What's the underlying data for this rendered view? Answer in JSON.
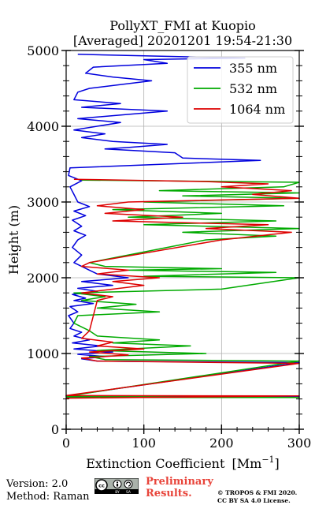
{
  "chart_data": {
    "type": "line",
    "title_line1": "PollyXT_FMI at Kuopio",
    "title_line2": "[Averaged] 20201201 19:54-21:30",
    "xlabel": "Extinction Coefficient",
    "xlabel_unit": "[Mm",
    "xlabel_sup": "−1",
    "xlabel_close": "]",
    "ylabel": "Height (m)",
    "xlim": [
      0,
      300
    ],
    "ylim": [
      0,
      5000
    ],
    "x_ticks": [
      0,
      100,
      200,
      300
    ],
    "y_ticks": [
      0,
      1000,
      2000,
      3000,
      4000,
      5000
    ],
    "x_tick_labels": [
      "0",
      "100",
      "200",
      "300"
    ],
    "y_tick_labels": [
      "0",
      "1000",
      "2000",
      "3000",
      "4000",
      "5000"
    ],
    "grid": true,
    "legend_position": "top-right",
    "series": [
      {
        "name": "355 nm",
        "color": "#0000dd",
        "points": [
          [
            0,
            420
          ],
          [
            300,
            430
          ],
          [
            0,
            440
          ],
          [
            300,
            880
          ],
          [
            40,
            900
          ],
          [
            20,
            930
          ],
          [
            50,
            960
          ],
          [
            15,
            990
          ],
          [
            60,
            1020
          ],
          [
            10,
            1060
          ],
          [
            45,
            1100
          ],
          [
            8,
            1140
          ],
          [
            30,
            1180
          ],
          [
            10,
            1230
          ],
          [
            20,
            1280
          ],
          [
            5,
            1330
          ],
          [
            10,
            1400
          ],
          [
            3,
            1500
          ],
          [
            15,
            1550
          ],
          [
            5,
            1620
          ],
          [
            35,
            1660
          ],
          [
            10,
            1700
          ],
          [
            25,
            1730
          ],
          [
            8,
            1780
          ],
          [
            40,
            1820
          ],
          [
            15,
            1860
          ],
          [
            60,
            1900
          ],
          [
            20,
            1950
          ],
          [
            80,
            2000
          ],
          [
            40,
            2050
          ],
          [
            30,
            2100
          ],
          [
            10,
            2200
          ],
          [
            20,
            2300
          ],
          [
            8,
            2400
          ],
          [
            15,
            2500
          ],
          [
            25,
            2560
          ],
          [
            10,
            2620
          ],
          [
            20,
            2680
          ],
          [
            8,
            2760
          ],
          [
            25,
            2820
          ],
          [
            10,
            2880
          ],
          [
            30,
            2940
          ],
          [
            15,
            3000
          ],
          [
            10,
            3100
          ],
          [
            5,
            3200
          ],
          [
            20,
            3280
          ],
          [
            3,
            3350
          ],
          [
            5,
            3450
          ],
          [
            250,
            3550
          ],
          [
            150,
            3580
          ],
          [
            140,
            3650
          ],
          [
            50,
            3700
          ],
          [
            80,
            3720
          ],
          [
            130,
            3760
          ],
          [
            60,
            3800
          ],
          [
            20,
            3850
          ],
          [
            50,
            3900
          ],
          [
            10,
            3950
          ],
          [
            70,
            4050
          ],
          [
            15,
            4100
          ],
          [
            130,
            4200
          ],
          [
            20,
            4250
          ],
          [
            70,
            4300
          ],
          [
            10,
            4350
          ],
          [
            15,
            4450
          ],
          [
            30,
            4500
          ],
          [
            110,
            4600
          ],
          [
            60,
            4650
          ],
          [
            25,
            4700
          ],
          [
            35,
            4780
          ],
          [
            130,
            4830
          ],
          [
            100,
            4880
          ],
          [
            230,
            4900
          ],
          [
            15,
            4950
          ]
        ]
      },
      {
        "name": "532 nm",
        "color": "#00aa00",
        "points": [
          [
            0,
            420
          ],
          [
            300,
            420
          ],
          [
            0,
            435
          ],
          [
            300,
            900
          ],
          [
            50,
            920
          ],
          [
            30,
            960
          ],
          [
            180,
            1000
          ],
          [
            40,
            1040
          ],
          [
            160,
            1100
          ],
          [
            60,
            1140
          ],
          [
            120,
            1180
          ],
          [
            40,
            1230
          ],
          [
            30,
            1300
          ],
          [
            10,
            1400
          ],
          [
            15,
            1500
          ],
          [
            120,
            1550
          ],
          [
            40,
            1600
          ],
          [
            90,
            1650
          ],
          [
            20,
            1700
          ],
          [
            50,
            1750
          ],
          [
            10,
            1800
          ],
          [
            200,
            1850
          ],
          [
            300,
            2000
          ],
          [
            100,
            2020
          ],
          [
            270,
            2070
          ],
          [
            80,
            2100
          ],
          [
            200,
            2120
          ],
          [
            50,
            2150
          ],
          [
            30,
            2200
          ],
          [
            180,
            2500
          ],
          [
            270,
            2550
          ],
          [
            150,
            2600
          ],
          [
            300,
            2650
          ],
          [
            100,
            2700
          ],
          [
            270,
            2750
          ],
          [
            80,
            2800
          ],
          [
            200,
            2850
          ],
          [
            60,
            2900
          ],
          [
            280,
            2950
          ],
          [
            100,
            3000
          ],
          [
            300,
            3050
          ],
          [
            150,
            3080
          ],
          [
            300,
            3120
          ],
          [
            120,
            3150
          ],
          [
            280,
            3200
          ],
          [
            300,
            3260
          ],
          [
            20,
            3290
          ]
        ]
      },
      {
        "name": "1064 nm",
        "color": "#dd0000",
        "points": [
          [
            0,
            410
          ],
          [
            300,
            440
          ],
          [
            0,
            445
          ],
          [
            300,
            870
          ],
          [
            40,
            900
          ],
          [
            20,
            940
          ],
          [
            80,
            980
          ],
          [
            30,
            1020
          ],
          [
            100,
            1060
          ],
          [
            40,
            1100
          ],
          [
            60,
            1150
          ],
          [
            20,
            1200
          ],
          [
            30,
            1300
          ],
          [
            40,
            1700
          ],
          [
            60,
            1750
          ],
          [
            20,
            1800
          ],
          [
            100,
            1900
          ],
          [
            60,
            1950
          ],
          [
            120,
            2000
          ],
          [
            40,
            2050
          ],
          [
            80,
            2100
          ],
          [
            20,
            2150
          ],
          [
            30,
            2200
          ],
          [
            200,
            2500
          ],
          [
            290,
            2600
          ],
          [
            180,
            2650
          ],
          [
            260,
            2700
          ],
          [
            60,
            2750
          ],
          [
            150,
            2800
          ],
          [
            50,
            2850
          ],
          [
            100,
            2900
          ],
          [
            40,
            2950
          ],
          [
            80,
            3000
          ],
          [
            300,
            3050
          ],
          [
            240,
            3100
          ],
          [
            290,
            3150
          ],
          [
            200,
            3200
          ],
          [
            260,
            3240
          ],
          [
            180,
            3270
          ],
          [
            10,
            3300
          ]
        ]
      }
    ]
  },
  "footer": {
    "version": "Version: 2.0",
    "method": "Method: Raman",
    "prelim_line1": "Preliminary",
    "prelim_line2": "Results.",
    "copyright_line1": "© TROPOS & FMI 2020.",
    "copyright_line2": "CC BY SA 4.0 License.",
    "cc_badge": "cc-by-sa-badge-icon",
    "cc_text": "cc",
    "by_text": "BY",
    "sa_text": "SA"
  }
}
